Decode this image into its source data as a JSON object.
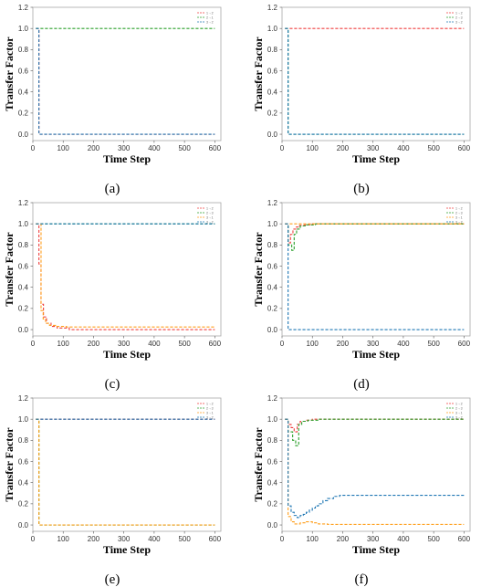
{
  "chart_data": [
    {
      "type": "line",
      "label": "(a)",
      "xlabel": "Time Step",
      "ylabel": "Transfer Factor",
      "xlim": [
        0,
        620
      ],
      "ylim": [
        -0.06,
        1.2
      ],
      "xticks": [
        "0",
        "100",
        "200",
        "300",
        "400",
        "500",
        "600"
      ],
      "yticks": [
        "0.0",
        "0.2",
        "0.4",
        "0.6",
        "0.8",
        "1.0",
        "1.2"
      ],
      "grid": false,
      "legend": "top-right",
      "series": [
        {
          "name": "1→2",
          "color": "#ef4040",
          "x": [
            10,
            20,
            20,
            600
          ],
          "y": [
            1.0,
            1.0,
            0.0,
            0.0
          ]
        },
        {
          "name": "2→1",
          "color": "#2ca02c",
          "x": [
            10,
            600
          ],
          "y": [
            1.0,
            1.0
          ]
        },
        {
          "name": "3→2",
          "color": "#1f77b4",
          "x": [
            10,
            20,
            20,
            600
          ],
          "y": [
            1.0,
            1.0,
            0.0,
            0.0
          ]
        }
      ]
    },
    {
      "type": "line",
      "label": "(b)",
      "xlabel": "Time Step",
      "ylabel": "Transfer Factor",
      "xlim": [
        0,
        620
      ],
      "ylim": [
        -0.06,
        1.2
      ],
      "xticks": [
        "0",
        "100",
        "200",
        "300",
        "400",
        "500",
        "600"
      ],
      "yticks": [
        "0.0",
        "0.2",
        "0.4",
        "0.6",
        "0.8",
        "1.0",
        "1.2"
      ],
      "grid": false,
      "legend": "top-right",
      "series": [
        {
          "name": "1→2",
          "color": "#ef4040",
          "x": [
            10,
            600
          ],
          "y": [
            1.0,
            1.0
          ]
        },
        {
          "name": "2→3",
          "color": "#2ca02c",
          "x": [
            10,
            20,
            20,
            600
          ],
          "y": [
            1.0,
            1.0,
            0.0,
            0.0
          ]
        },
        {
          "name": "3→2",
          "color": "#1f77b4",
          "x": [
            10,
            20,
            20,
            600
          ],
          "y": [
            1.0,
            1.0,
            0.0,
            0.0
          ]
        }
      ]
    },
    {
      "type": "line",
      "label": "(c)",
      "xlabel": "Time Step",
      "ylabel": "Transfer Factor",
      "xlim": [
        0,
        620
      ],
      "ylim": [
        -0.06,
        1.2
      ],
      "xticks": [
        "0",
        "100",
        "200",
        "300",
        "400",
        "500",
        "600"
      ],
      "yticks": [
        "0.0",
        "0.2",
        "0.4",
        "0.6",
        "0.8",
        "1.0",
        "1.2"
      ],
      "grid": false,
      "legend": "top-right",
      "series": [
        {
          "name": "1→2",
          "color": "#ef4040",
          "x": [
            10,
            20,
            20,
            27,
            27,
            35,
            35,
            45,
            45,
            60,
            60,
            80,
            80,
            120,
            120,
            600
          ],
          "y": [
            1.0,
            1.0,
            0.62,
            0.62,
            0.24,
            0.24,
            0.12,
            0.12,
            0.06,
            0.06,
            0.03,
            0.03,
            0.015,
            0.015,
            0.0,
            0.0
          ]
        },
        {
          "name": "2→3",
          "color": "#2ca02c",
          "x": [
            10,
            600
          ],
          "y": [
            1.0,
            1.0
          ]
        },
        {
          "name": "3→1",
          "color": "#ff9f1c",
          "x": [
            10,
            27,
            27,
            34,
            34,
            42,
            42,
            55,
            55,
            75,
            75,
            110,
            110,
            600
          ],
          "y": [
            1.0,
            1.0,
            0.18,
            0.18,
            0.1,
            0.1,
            0.06,
            0.06,
            0.04,
            0.04,
            0.03,
            0.03,
            0.025,
            0.025
          ]
        },
        {
          "name": "3→2",
          "color": "#1f77b4",
          "x": [
            10,
            600
          ],
          "y": [
            1.0,
            1.0
          ]
        }
      ]
    },
    {
      "type": "line",
      "label": "(d)",
      "xlabel": "Time Step",
      "ylabel": "Transfer Factor",
      "xlim": [
        0,
        620
      ],
      "ylim": [
        -0.06,
        1.2
      ],
      "xticks": [
        "0",
        "100",
        "200",
        "300",
        "400",
        "500",
        "600"
      ],
      "yticks": [
        "0.0",
        "0.2",
        "0.4",
        "0.6",
        "0.8",
        "1.0",
        "1.2"
      ],
      "grid": false,
      "legend": "top-right",
      "series": [
        {
          "name": "1→2",
          "color": "#ef4040",
          "x": [
            10,
            20,
            20,
            28,
            28,
            36,
            36,
            45,
            45,
            58,
            58,
            75,
            75,
            100,
            100,
            600
          ],
          "y": [
            1.0,
            1.0,
            0.82,
            0.82,
            0.9,
            0.9,
            0.95,
            0.95,
            0.97,
            0.97,
            0.985,
            0.985,
            0.99,
            0.99,
            1.0,
            1.0
          ]
        },
        {
          "name": "2→3",
          "color": "#2ca02c",
          "x": [
            10,
            20,
            20,
            32,
            32,
            40,
            40,
            48,
            48,
            60,
            60,
            80,
            80,
            110,
            110,
            600
          ],
          "y": [
            1.0,
            1.0,
            0.8,
            0.8,
            0.75,
            0.75,
            0.9,
            0.9,
            0.95,
            0.95,
            0.98,
            0.98,
            0.99,
            0.99,
            1.0,
            1.0
          ]
        },
        {
          "name": "3→1",
          "color": "#ff9f1c",
          "x": [
            10,
            600
          ],
          "y": [
            1.0,
            1.0
          ]
        },
        {
          "name": "3→2",
          "color": "#1f77b4",
          "x": [
            10,
            20,
            20,
            600
          ],
          "y": [
            1.0,
            1.0,
            0.0,
            0.0
          ]
        }
      ]
    },
    {
      "type": "line",
      "label": "(e)",
      "xlabel": "Time Step",
      "ylabel": "Transfer Factor",
      "xlim": [
        0,
        620
      ],
      "ylim": [
        -0.06,
        1.2
      ],
      "xticks": [
        "0",
        "100",
        "200",
        "300",
        "400",
        "500",
        "600"
      ],
      "yticks": [
        "0.0",
        "0.2",
        "0.4",
        "0.6",
        "0.8",
        "1.0",
        "1.2"
      ],
      "grid": false,
      "legend": "top-right",
      "series": [
        {
          "name": "1→2",
          "color": "#ef4040",
          "x": [
            10,
            600
          ],
          "y": [
            1.0,
            1.0
          ]
        },
        {
          "name": "2→3",
          "color": "#2ca02c",
          "x": [
            10,
            20,
            20,
            600
          ],
          "y": [
            1.0,
            1.0,
            0.0,
            0.0
          ]
        },
        {
          "name": "3→1",
          "color": "#ff9f1c",
          "x": [
            10,
            20,
            20,
            600
          ],
          "y": [
            1.0,
            1.0,
            0.0,
            0.0
          ]
        },
        {
          "name": "3→2",
          "color": "#1f77b4",
          "x": [
            10,
            600
          ],
          "y": [
            1.0,
            1.0
          ]
        }
      ]
    },
    {
      "type": "line",
      "label": "(f)",
      "xlabel": "Time Step",
      "ylabel": "Transfer Factor",
      "xlim": [
        0,
        620
      ],
      "ylim": [
        -0.06,
        1.2
      ],
      "xticks": [
        "0",
        "100",
        "200",
        "300",
        "400",
        "500",
        "600"
      ],
      "yticks": [
        "0.0",
        "0.2",
        "0.4",
        "0.6",
        "0.8",
        "1.0",
        "1.2"
      ],
      "grid": false,
      "legend": "top-right",
      "series": [
        {
          "name": "1→2",
          "color": "#ef4040",
          "x": [
            10,
            20,
            20,
            30,
            30,
            40,
            40,
            50,
            50,
            60,
            60,
            80,
            80,
            100,
            100,
            600
          ],
          "y": [
            1.0,
            1.0,
            0.95,
            0.95,
            0.92,
            0.92,
            0.88,
            0.88,
            0.95,
            0.95,
            0.98,
            0.98,
            0.99,
            0.99,
            1.0,
            1.0
          ]
        },
        {
          "name": "2→3",
          "color": "#2ca02c",
          "x": [
            10,
            20,
            20,
            35,
            35,
            45,
            45,
            55,
            55,
            65,
            65,
            85,
            85,
            120,
            120,
            600
          ],
          "y": [
            1.0,
            1.0,
            0.88,
            0.88,
            0.8,
            0.8,
            0.75,
            0.75,
            0.95,
            0.95,
            0.98,
            0.98,
            0.99,
            0.99,
            1.0,
            1.0
          ]
        },
        {
          "name": "3→1",
          "color": "#ff9f1c",
          "x": [
            10,
            20,
            20,
            30,
            30,
            40,
            40,
            60,
            60,
            80,
            80,
            100,
            100,
            120,
            120,
            150,
            150,
            600
          ],
          "y": [
            1.0,
            1.0,
            0.08,
            0.08,
            0.03,
            0.03,
            0.01,
            0.01,
            0.02,
            0.02,
            0.03,
            0.03,
            0.02,
            0.02,
            0.01,
            0.01,
            0.005,
            0.005
          ]
        },
        {
          "name": "3→2",
          "color": "#1f77b4",
          "x": [
            10,
            20,
            20,
            30,
            30,
            40,
            40,
            50,
            50,
            60,
            60,
            70,
            70,
            80,
            80,
            90,
            90,
            100,
            100,
            110,
            110,
            120,
            120,
            135,
            135,
            150,
            150,
            170,
            170,
            190,
            190,
            600
          ],
          "y": [
            1.0,
            1.0,
            0.18,
            0.18,
            0.12,
            0.12,
            0.09,
            0.09,
            0.07,
            0.07,
            0.09,
            0.09,
            0.1,
            0.1,
            0.12,
            0.12,
            0.14,
            0.14,
            0.16,
            0.16,
            0.18,
            0.18,
            0.2,
            0.2,
            0.23,
            0.23,
            0.25,
            0.25,
            0.27,
            0.27,
            0.28,
            0.28
          ]
        }
      ]
    }
  ]
}
